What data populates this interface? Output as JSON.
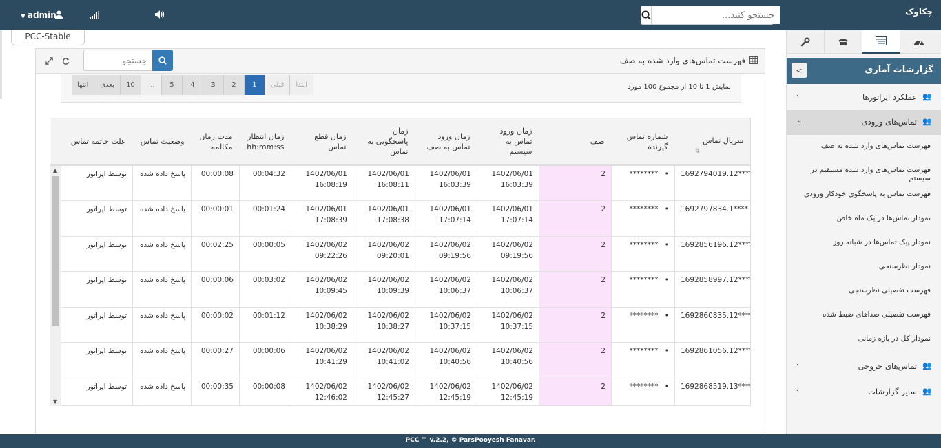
{
  "topbar": {
    "user": "admin",
    "search_placeholder": "جستجو کنید...",
    "logo": "چکاوک",
    "env_tab": "PCC-Stable"
  },
  "panel": {
    "title": "فهرست تماس‌های وارد شده به صف",
    "search_placeholder": "جستجو",
    "info": "نمایش 1 تا 10 از مجموع 100 مورد"
  },
  "pager": {
    "items": [
      "انتها",
      "بعدی",
      "10",
      "...",
      "5",
      "4",
      "3",
      "2",
      "1",
      "قبلی",
      "ابتدا"
    ]
  },
  "table": {
    "headers": [
      "سریال تماس",
      "شماره تماس گیرنده",
      "صف",
      "زمان ورود تماس به سیستم",
      "زمان ورود تماس به صف",
      "زمان پاسخگویی به تماس",
      "زمان قطع تماس",
      "زمان انتظار hh:mm:ss",
      "مدت زمان مکالمه",
      "وضعیت تماس",
      "علت خاتمه تماس"
    ],
    "rows": [
      {
        "serial": "1692794019.12****",
        "caller": "********",
        "queue": "2",
        "sys_date": "1402/06/01",
        "sys_time": "16:03:39",
        "q_date": "1402/06/01",
        "q_time": "16:03:39",
        "ans_date": "1402/06/01",
        "ans_time": "16:08:11",
        "end_date": "1402/06/01",
        "end_time": "16:08:19",
        "wait": "00:04:32",
        "talk": "00:00:08",
        "status": "پاسخ داده شده",
        "reason": "توسط اپراتور"
      },
      {
        "serial": "1692797834.1****",
        "caller": "********",
        "queue": "2",
        "sys_date": "1402/06/01",
        "sys_time": "17:07:14",
        "q_date": "1402/06/01",
        "q_time": "17:07:14",
        "ans_date": "1402/06/01",
        "ans_time": "17:08:38",
        "end_date": "1402/06/01",
        "end_time": "17:08:39",
        "wait": "00:01:24",
        "talk": "00:00:01",
        "status": "پاسخ داده شده",
        "reason": "توسط اپراتور"
      },
      {
        "serial": "1692856196.12****",
        "caller": "********",
        "queue": "2",
        "sys_date": "1402/06/02",
        "sys_time": "09:19:56",
        "q_date": "1402/06/02",
        "q_time": "09:19:56",
        "ans_date": "1402/06/02",
        "ans_time": "09:20:01",
        "end_date": "1402/06/02",
        "end_time": "09:22:26",
        "wait": "00:00:05",
        "talk": "00:02:25",
        "status": "پاسخ داده شده",
        "reason": "توسط اپراتور"
      },
      {
        "serial": "1692858997.12****",
        "caller": "********",
        "queue": "2",
        "sys_date": "1402/06/02",
        "sys_time": "10:06:37",
        "q_date": "1402/06/02",
        "q_time": "10:06:37",
        "ans_date": "1402/06/02",
        "ans_time": "10:09:39",
        "end_date": "1402/06/02",
        "end_time": "10:09:45",
        "wait": "00:03:02",
        "talk": "00:00:06",
        "status": "پاسخ داده شده",
        "reason": "توسط اپراتور"
      },
      {
        "serial": "1692860835.12****",
        "caller": "********",
        "queue": "2",
        "sys_date": "1402/06/02",
        "sys_time": "10:37:15",
        "q_date": "1402/06/02",
        "q_time": "10:37:15",
        "ans_date": "1402/06/02",
        "ans_time": "10:38:27",
        "end_date": "1402/06/02",
        "end_time": "10:38:29",
        "wait": "00:01:12",
        "talk": "00:00:02",
        "status": "پاسخ داده شده",
        "reason": "توسط اپراتور"
      },
      {
        "serial": "1692861056.12****",
        "caller": "********",
        "queue": "2",
        "sys_date": "1402/06/02",
        "sys_time": "10:40:56",
        "q_date": "1402/06/02",
        "q_time": "10:40:56",
        "ans_date": "1402/06/02",
        "ans_time": "10:41:02",
        "end_date": "1402/06/02",
        "end_time": "10:41:29",
        "wait": "00:00:06",
        "talk": "00:00:27",
        "status": "پاسخ داده شده",
        "reason": "توسط اپراتور"
      },
      {
        "serial": "1692868519.13****",
        "caller": "********",
        "queue": "2",
        "sys_date": "1402/06/02",
        "sys_time": "12:45:19",
        "q_date": "1402/06/02",
        "q_time": "12:45:19",
        "ans_date": "1402/06/02",
        "ans_time": "12:45:27",
        "end_date": "1402/06/02",
        "end_time": "12:46:02",
        "wait": "00:00:08",
        "talk": "00:00:35",
        "status": "پاسخ داده شده",
        "reason": "توسط اپراتور"
      }
    ]
  },
  "sidebar": {
    "title": "گزارشات آماری",
    "menu": [
      {
        "label": "عملکرد اپراتورها"
      },
      {
        "label": "تماس‌های ورودی"
      },
      {
        "label": "تماس‌های خروجی"
      },
      {
        "label": "سایر گزارشات"
      }
    ],
    "sub": [
      "فهرست تماس‌های وارد شده به صف",
      "فهرست تماس‌های وارد شده مستقیم در سیستم",
      "فهرست تماس به پاسخگوی خودکار ورودی",
      "نمودار تماس‌ها در یک ماه خاص",
      "نمودار پیک تماس‌ها در شبانه روز",
      "نمودار نظرسنجی",
      "فهرست تفصیلی نظرسنجی",
      "فهرست تفصیلی صداهای ضبط شده",
      "نمودار کل در بازه زمانی"
    ]
  },
  "footer": "PCC ™ v.2.2, © ParsPooyesh Fanavar."
}
